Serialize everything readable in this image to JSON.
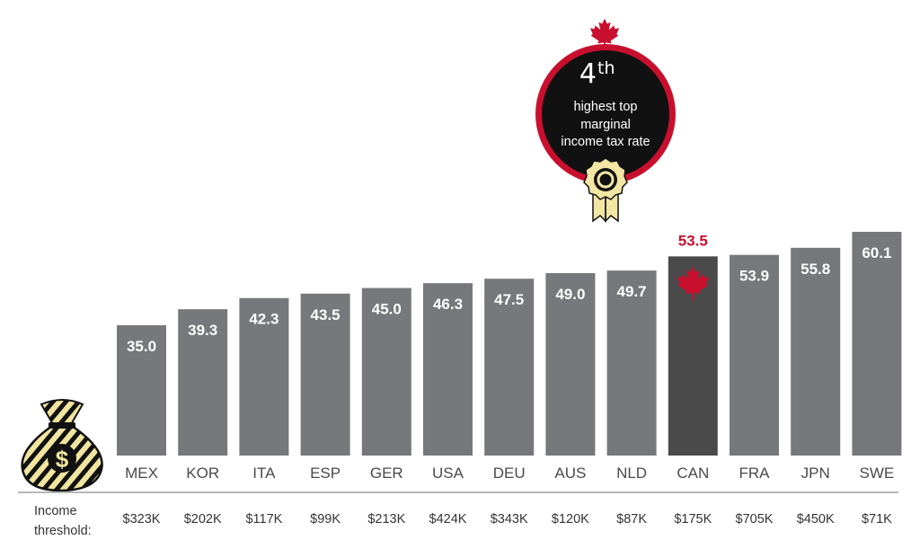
{
  "chart_data": {
    "type": "bar",
    "categories": [
      "MEX",
      "KOR",
      "ITA",
      "ESP",
      "GER",
      "USA",
      "DEU",
      "AUS",
      "NLD",
      "CAN",
      "FRA",
      "JPN",
      "SWE"
    ],
    "values": [
      35.0,
      39.3,
      42.3,
      43.5,
      45.0,
      46.3,
      47.5,
      49.0,
      49.7,
      53.5,
      53.9,
      55.8,
      60.1
    ],
    "value_labels": [
      "35.0",
      "39.3",
      "42.3",
      "43.5",
      "45.0",
      "46.3",
      "47.5",
      "49.0",
      "49.7",
      "53.5",
      "53.9",
      "55.8",
      "60.1"
    ],
    "thresholds": [
      "$323K",
      "$202K",
      "$117K",
      "$99K",
      "$213K",
      "$424K",
      "$343K",
      "$120K",
      "$87K",
      "$175K",
      "$705K",
      "$450K",
      "$71K"
    ],
    "highlight_category": "CAN",
    "ylim": [
      0,
      60.1
    ],
    "grid": false,
    "colors": {
      "bar": "#77787b",
      "bar_highlight": "#4a4a4b",
      "highlight_text": "#c8102e",
      "axis_line": "#b8b8b8"
    }
  },
  "threshold_label_line1": "Income",
  "threshold_label_line2": "threshold:",
  "badge": {
    "rank_number": "4",
    "rank_suffix": "th",
    "line1": "highest top",
    "line2": "marginal",
    "line3": "income tax rate",
    "icons": [
      "maple-leaf-icon",
      "award-ribbon-icon"
    ],
    "ring_color": "#c8102e",
    "fill_color": "#111111",
    "ribbon_color": "#f3e6a4"
  },
  "money_bag_icon": "money-bag-icon"
}
